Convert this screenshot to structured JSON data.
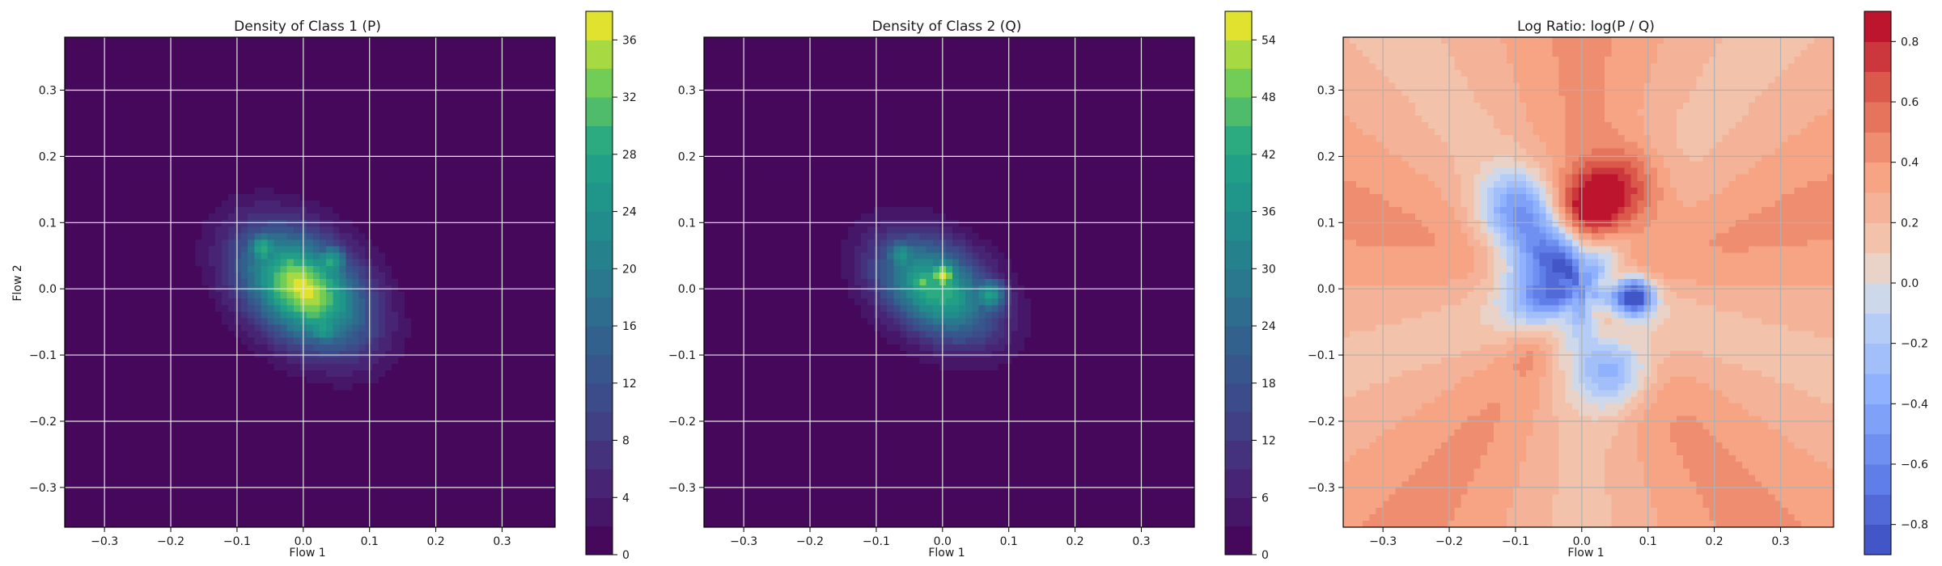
{
  "chart_data": [
    {
      "type": "heatmap",
      "title": "Density of Class 1 (P)",
      "xlabel": "Flow 1",
      "ylabel": "Flow 2",
      "xlim": [
        -0.36,
        0.38
      ],
      "ylim": [
        -0.36,
        0.38
      ],
      "xticks": [
        -0.3,
        -0.2,
        -0.1,
        0.0,
        0.1,
        0.2,
        0.3
      ],
      "yticks": [
        -0.3,
        -0.2,
        -0.1,
        0.0,
        0.1,
        0.2,
        0.3
      ],
      "grid": true,
      "colormap": "viridis",
      "colorbar": {
        "min": 0,
        "max": 38,
        "ticks": [
          0,
          4,
          8,
          12,
          16,
          20,
          24,
          28,
          32,
          36
        ]
      },
      "density_model": {
        "center": [
          0.0,
          0.0
        ],
        "sigma_major": 0.075,
        "sigma_minor": 0.05,
        "rotation_deg": -40,
        "peak": 37,
        "hotspots": [
          {
            "x": -0.06,
            "y": 0.06,
            "value": 30
          },
          {
            "x": 0.04,
            "y": 0.04,
            "value": 29
          },
          {
            "x": 0.01,
            "y": -0.04,
            "value": 31
          },
          {
            "x": 0.03,
            "y": -0.06,
            "value": 28
          }
        ]
      }
    },
    {
      "type": "heatmap",
      "title": "Density of Class 2 (Q)",
      "xlabel": "Flow 1",
      "ylabel": "",
      "xlim": [
        -0.36,
        0.38
      ],
      "ylim": [
        -0.36,
        0.38
      ],
      "xticks": [
        -0.3,
        -0.2,
        -0.1,
        0.0,
        0.1,
        0.2,
        0.3
      ],
      "yticks": [
        -0.3,
        -0.2,
        -0.1,
        0.0,
        0.1,
        0.2,
        0.3
      ],
      "grid": true,
      "colormap": "viridis",
      "colorbar": {
        "min": 0,
        "max": 57,
        "ticks": [
          0,
          6,
          12,
          18,
          24,
          30,
          36,
          42,
          48,
          54
        ]
      },
      "density_model": {
        "center": [
          -0.01,
          0.0
        ],
        "sigma_major": 0.068,
        "sigma_minor": 0.045,
        "rotation_deg": -35,
        "peak": 45,
        "hotspots": [
          {
            "x": 0.0,
            "y": 0.02,
            "value": 56
          },
          {
            "x": -0.03,
            "y": 0.01,
            "value": 50
          },
          {
            "x": 0.07,
            "y": -0.01,
            "value": 40
          },
          {
            "x": -0.06,
            "y": 0.05,
            "value": 38
          }
        ]
      }
    },
    {
      "type": "heatmap",
      "title": "Log Ratio: log(P / Q)",
      "xlabel": "Flow 1",
      "ylabel": "",
      "xlim": [
        -0.36,
        0.38
      ],
      "ylim": [
        -0.36,
        0.38
      ],
      "xticks": [
        -0.3,
        -0.2,
        -0.1,
        0.0,
        0.1,
        0.2,
        0.3
      ],
      "yticks": [
        -0.3,
        -0.2,
        -0.1,
        0.0,
        0.1,
        0.2,
        0.3
      ],
      "grid": true,
      "colormap": "coolwarm",
      "colorbar": {
        "min": -0.9,
        "max": 0.9,
        "ticks": [
          -0.8,
          -0.6,
          -0.4,
          -0.2,
          0.0,
          0.2,
          0.4,
          0.6,
          0.8
        ]
      },
      "ratio_model": {
        "background": 0.3,
        "features": [
          {
            "x": 0.01,
            "y": 0.12,
            "value": 0.85,
            "radius": 0.035
          },
          {
            "x": 0.06,
            "y": 0.12,
            "value": 0.55,
            "radius": 0.05
          },
          {
            "x": 0.07,
            "y": 0.16,
            "value": 0.6,
            "radius": 0.04
          },
          {
            "x": -0.04,
            "y": 0.02,
            "value": -0.75,
            "radius": 0.05
          },
          {
            "x": 0.08,
            "y": -0.01,
            "value": -0.8,
            "radius": 0.02
          },
          {
            "x": -0.1,
            "y": 0.12,
            "value": -0.3,
            "radius": 0.04
          },
          {
            "x": 0.05,
            "y": -0.12,
            "value": -0.3,
            "radius": 0.04
          },
          {
            "x": 0.02,
            "y": -0.07,
            "value": 0.35,
            "radius": 0.03
          },
          {
            "x": -0.08,
            "y": -0.1,
            "value": 0.4,
            "radius": 0.02
          }
        ]
      }
    }
  ]
}
